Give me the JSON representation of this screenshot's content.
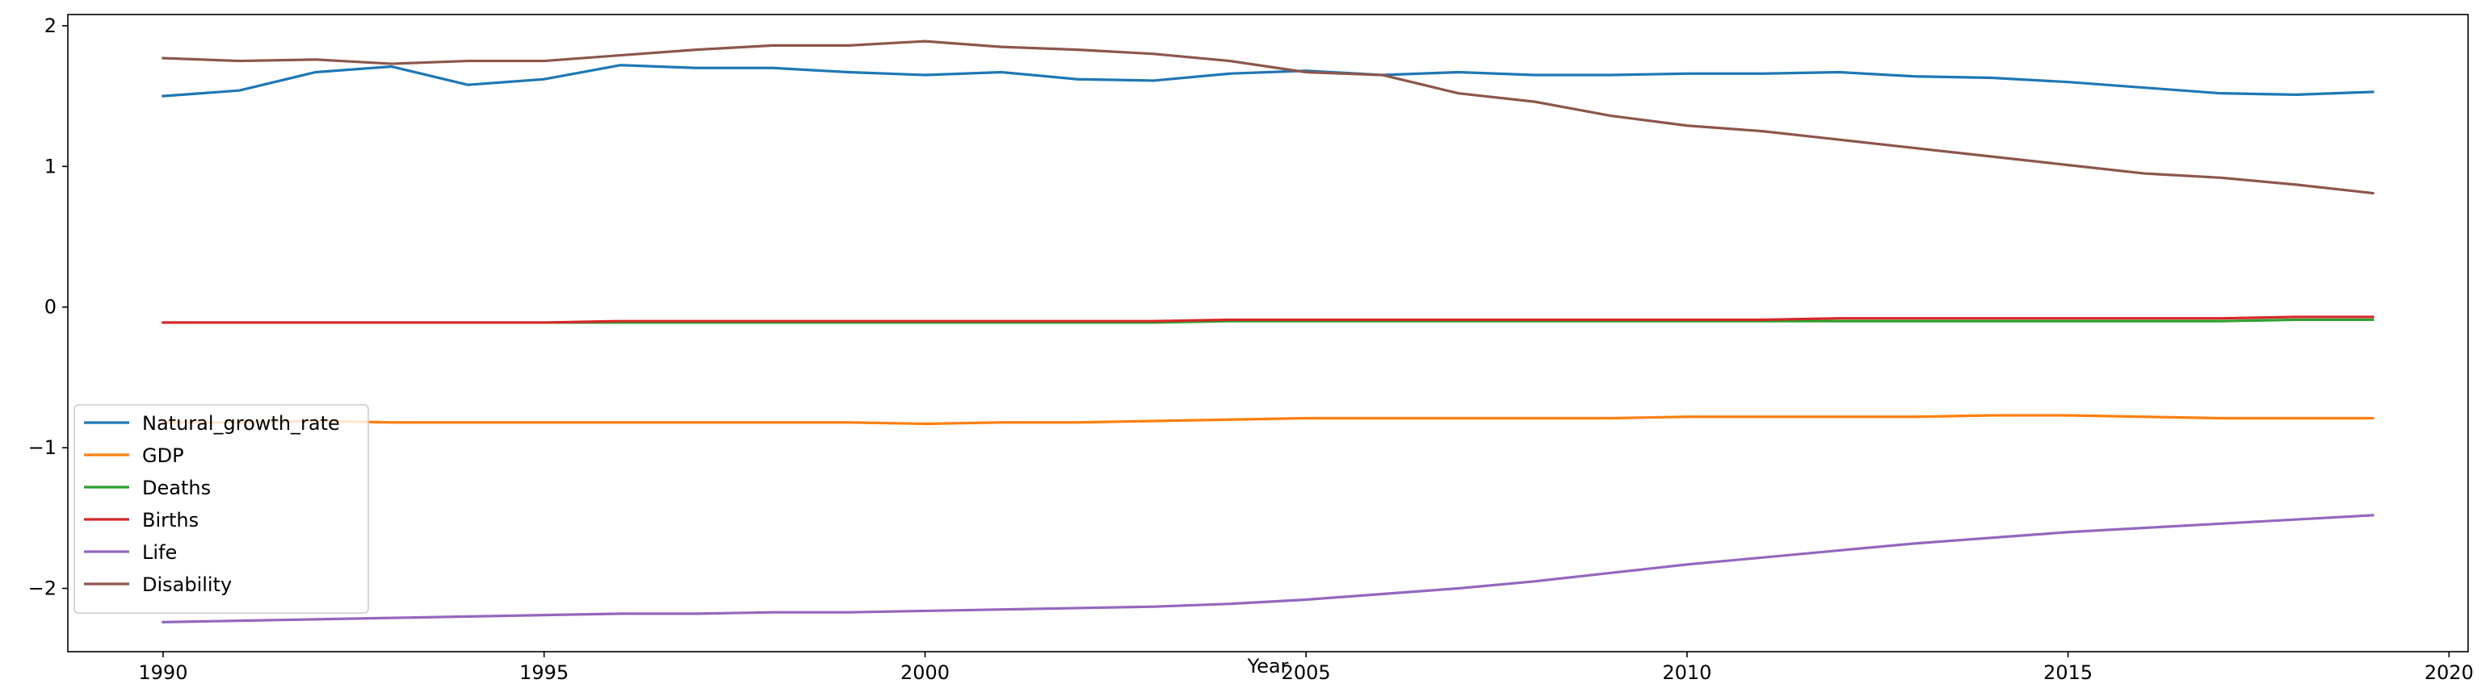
{
  "chart_data": {
    "type": "line",
    "title": "",
    "xlabel": "Year",
    "ylabel": "",
    "xlim": [
      1988.75,
      2020.25
    ],
    "ylim": [
      -2.45,
      2.08
    ],
    "xticks": [
      1990,
      1995,
      2000,
      2005,
      2010,
      2015,
      2020
    ],
    "yticks": [
      -2,
      -1,
      0,
      1,
      2
    ],
    "ytick_labels": [
      "−2",
      "−1",
      "0",
      "1",
      "2"
    ],
    "grid": false,
    "legend_position": "lower-left",
    "x": [
      1990,
      1991,
      1992,
      1993,
      1994,
      1995,
      1996,
      1997,
      1998,
      1999,
      2000,
      2001,
      2002,
      2003,
      2004,
      2005,
      2006,
      2007,
      2008,
      2009,
      2010,
      2011,
      2012,
      2013,
      2014,
      2015,
      2016,
      2017,
      2018,
      2019
    ],
    "series": [
      {
        "name": "Natural_growth_rate",
        "color": "#1f77b4",
        "values": [
          1.5,
          1.54,
          1.67,
          1.71,
          1.58,
          1.62,
          1.72,
          1.7,
          1.7,
          1.67,
          1.65,
          1.67,
          1.62,
          1.61,
          1.66,
          1.68,
          1.65,
          1.67,
          1.65,
          1.65,
          1.66,
          1.66,
          1.67,
          1.64,
          1.63,
          1.6,
          1.56,
          1.52,
          1.51,
          1.53
        ]
      },
      {
        "name": "GDP",
        "color": "#ff7f0e",
        "values": [
          -0.82,
          -0.82,
          -0.81,
          -0.82,
          -0.82,
          -0.82,
          -0.82,
          -0.82,
          -0.82,
          -0.82,
          -0.83,
          -0.82,
          -0.82,
          -0.81,
          -0.8,
          -0.79,
          -0.79,
          -0.79,
          -0.79,
          -0.79,
          -0.78,
          -0.78,
          -0.78,
          -0.78,
          -0.77,
          -0.77,
          -0.78,
          -0.79,
          -0.79,
          -0.79
        ]
      },
      {
        "name": "Deaths",
        "color": "#2ca02c",
        "values": [
          -0.11,
          -0.11,
          -0.11,
          -0.11,
          -0.11,
          -0.11,
          -0.11,
          -0.11,
          -0.11,
          -0.11,
          -0.11,
          -0.11,
          -0.11,
          -0.11,
          -0.1,
          -0.1,
          -0.1,
          -0.1,
          -0.1,
          -0.1,
          -0.1,
          -0.1,
          -0.1,
          -0.1,
          -0.1,
          -0.1,
          -0.1,
          -0.1,
          -0.09,
          -0.09
        ]
      },
      {
        "name": "Births",
        "color": "#d62728",
        "values": [
          -0.11,
          -0.11,
          -0.11,
          -0.11,
          -0.11,
          -0.11,
          -0.1,
          -0.1,
          -0.1,
          -0.1,
          -0.1,
          -0.1,
          -0.1,
          -0.1,
          -0.09,
          -0.09,
          -0.09,
          -0.09,
          -0.09,
          -0.09,
          -0.09,
          -0.09,
          -0.08,
          -0.08,
          -0.08,
          -0.08,
          -0.08,
          -0.08,
          -0.07,
          -0.07
        ]
      },
      {
        "name": "Life",
        "color": "#9467bd",
        "values": [
          -2.24,
          -2.23,
          -2.22,
          -2.21,
          -2.2,
          -2.19,
          -2.18,
          -2.18,
          -2.17,
          -2.17,
          -2.16,
          -2.15,
          -2.14,
          -2.13,
          -2.11,
          -2.08,
          -2.04,
          -2.0,
          -1.95,
          -1.89,
          -1.83,
          -1.78,
          -1.73,
          -1.68,
          -1.64,
          -1.6,
          -1.57,
          -1.54,
          -1.51,
          -1.48
        ]
      },
      {
        "name": "Disability",
        "color": "#8c564b",
        "values": [
          1.77,
          1.75,
          1.76,
          1.73,
          1.75,
          1.75,
          1.79,
          1.83,
          1.86,
          1.86,
          1.89,
          1.85,
          1.83,
          1.8,
          1.75,
          1.67,
          1.65,
          1.52,
          1.46,
          1.36,
          1.29,
          1.25,
          1.19,
          1.13,
          1.07,
          1.01,
          0.95,
          0.92,
          0.87,
          0.81
        ]
      }
    ]
  }
}
